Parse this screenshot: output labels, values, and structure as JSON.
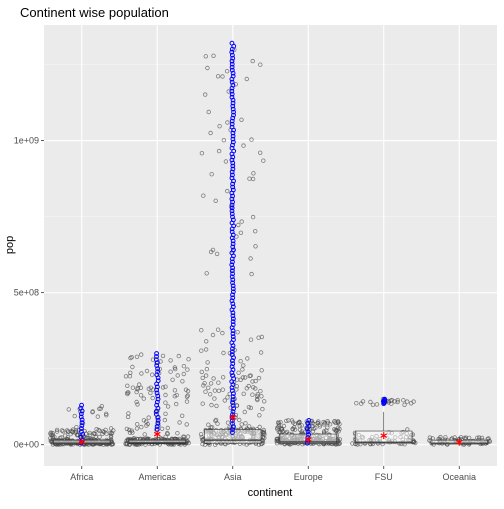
{
  "chart_data": {
    "type": "scatter",
    "title": "Continent wise population",
    "xlabel": "continent",
    "ylabel": "pop",
    "categories": [
      "Africa",
      "Americas",
      "Asia",
      "Europe",
      "FSU",
      "Oceania"
    ],
    "y_ticks": [
      {
        "value": 0,
        "label": "0e+00"
      },
      {
        "value": 500000000,
        "label": "5e+08"
      },
      {
        "value": 1000000000,
        "label": "1e+09"
      }
    ],
    "ylim": [
      -70000000,
      1380000000
    ],
    "grid": true,
    "layers": [
      "jittered points",
      "boxplot",
      "overlaid blue points",
      "mean marker (red asterisk)"
    ],
    "summary": [
      {
        "continent": "Africa",
        "median": 5000000,
        "q1": 2000000,
        "q3": 15000000,
        "mean": 10000000,
        "max_approx": 135000000,
        "blue_range": [
          5000000,
          130000000
        ]
      },
      {
        "continent": "Americas",
        "median": 6000000,
        "q1": 3000000,
        "q3": 15000000,
        "mean": 35000000,
        "max_approx": 300000000,
        "blue_range": [
          50000000,
          300000000
        ]
      },
      {
        "continent": "Asia",
        "median": 15000000,
        "q1": 5000000,
        "q3": 50000000,
        "mean": 90000000,
        "max_approx": 1320000000,
        "blue_range": [
          40000000,
          1320000000
        ]
      },
      {
        "continent": "Europe",
        "median": 9000000,
        "q1": 4000000,
        "q3": 35000000,
        "mean": 17000000,
        "max_approx": 80000000,
        "blue_range": [
          5000000,
          80000000
        ]
      },
      {
        "continent": "FSU",
        "median": 8000000,
        "q1": 3000000,
        "q3": 45000000,
        "mean": 30000000,
        "max_approx": 150000000,
        "blue_range": [
          135000000,
          150000000
        ]
      },
      {
        "continent": "Oceania",
        "median": 5000000,
        "q1": 2000000,
        "q3": 15000000,
        "mean": 8000000,
        "max_approx": 25000000,
        "blue_range": [
          0,
          0
        ]
      }
    ],
    "colors": {
      "panel": "#ebebeb",
      "grid_major": "#ffffff",
      "points": "#4d4d4d",
      "blue_points": "#0000ff",
      "mean_marker": "#ff0000",
      "box_outline": "#333333"
    }
  }
}
